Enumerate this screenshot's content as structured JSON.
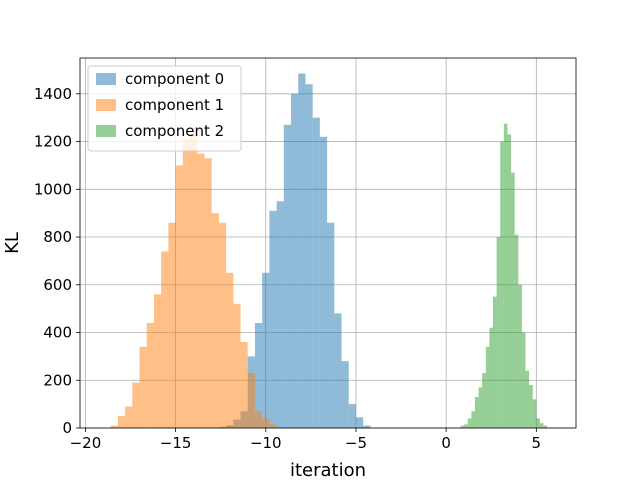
{
  "chart_data": {
    "type": "histogram",
    "title": "",
    "xlabel": "iteration",
    "ylabel": "KL",
    "xlim": [
      -20.3,
      7.2
    ],
    "ylim": [
      0,
      1550
    ],
    "xticks": [
      -20,
      -15,
      -10,
      -5,
      0,
      5
    ],
    "yticks": [
      0,
      200,
      400,
      600,
      800,
      1000,
      1200,
      1400
    ],
    "grid": true,
    "legend_position": "upper-left",
    "bar_alpha": 0.5,
    "series": [
      {
        "name": "component 0",
        "color": "#1f77b4",
        "bins": [
          {
            "x0": -12.6,
            "x1": -12.2,
            "y": 5
          },
          {
            "x0": -12.2,
            "x1": -11.8,
            "y": 12
          },
          {
            "x0": -11.8,
            "x1": -11.4,
            "y": 35
          },
          {
            "x0": -11.4,
            "x1": -11.0,
            "y": 70
          },
          {
            "x0": -11.0,
            "x1": -10.6,
            "y": 300
          },
          {
            "x0": -10.6,
            "x1": -10.2,
            "y": 440
          },
          {
            "x0": -10.2,
            "x1": -9.8,
            "y": 650
          },
          {
            "x0": -9.8,
            "x1": -9.4,
            "y": 910
          },
          {
            "x0": -9.4,
            "x1": -9.0,
            "y": 950
          },
          {
            "x0": -9.0,
            "x1": -8.6,
            "y": 1270
          },
          {
            "x0": -8.6,
            "x1": -8.2,
            "y": 1400
          },
          {
            "x0": -8.2,
            "x1": -7.8,
            "y": 1485
          },
          {
            "x0": -7.8,
            "x1": -7.4,
            "y": 1440
          },
          {
            "x0": -7.4,
            "x1": -7.0,
            "y": 1300
          },
          {
            "x0": -7.0,
            "x1": -6.6,
            "y": 1220
          },
          {
            "x0": -6.6,
            "x1": -6.2,
            "y": 860
          },
          {
            "x0": -6.2,
            "x1": -5.8,
            "y": 480
          },
          {
            "x0": -5.8,
            "x1": -5.4,
            "y": 280
          },
          {
            "x0": -5.4,
            "x1": -5.0,
            "y": 100
          },
          {
            "x0": -5.0,
            "x1": -4.6,
            "y": 45
          },
          {
            "x0": -4.6,
            "x1": -4.2,
            "y": 10
          }
        ]
      },
      {
        "name": "component 1",
        "color": "#ff7f0e",
        "bins": [
          {
            "x0": -18.6,
            "x1": -18.2,
            "y": 10
          },
          {
            "x0": -18.2,
            "x1": -17.8,
            "y": 50
          },
          {
            "x0": -17.8,
            "x1": -17.4,
            "y": 90
          },
          {
            "x0": -17.4,
            "x1": -17.0,
            "y": 190
          },
          {
            "x0": -17.0,
            "x1": -16.6,
            "y": 340
          },
          {
            "x0": -16.6,
            "x1": -16.2,
            "y": 440
          },
          {
            "x0": -16.2,
            "x1": -15.8,
            "y": 560
          },
          {
            "x0": -15.8,
            "x1": -15.4,
            "y": 740
          },
          {
            "x0": -15.4,
            "x1": -15.0,
            "y": 860
          },
          {
            "x0": -15.0,
            "x1": -14.6,
            "y": 1100
          },
          {
            "x0": -14.6,
            "x1": -14.2,
            "y": 1210
          },
          {
            "x0": -14.2,
            "x1": -13.8,
            "y": 1230
          },
          {
            "x0": -13.8,
            "x1": -13.4,
            "y": 1150
          },
          {
            "x0": -13.4,
            "x1": -13.0,
            "y": 1130
          },
          {
            "x0": -13.0,
            "x1": -12.6,
            "y": 900
          },
          {
            "x0": -12.6,
            "x1": -12.2,
            "y": 860
          },
          {
            "x0": -12.2,
            "x1": -11.8,
            "y": 650
          },
          {
            "x0": -11.8,
            "x1": -11.4,
            "y": 520
          },
          {
            "x0": -11.4,
            "x1": -11.0,
            "y": 360
          },
          {
            "x0": -11.0,
            "x1": -10.6,
            "y": 230
          },
          {
            "x0": -10.6,
            "x1": -10.2,
            "y": 70
          },
          {
            "x0": -10.2,
            "x1": -9.8,
            "y": 40
          },
          {
            "x0": -9.8,
            "x1": -9.4,
            "y": 15
          }
        ]
      },
      {
        "name": "component 2",
        "color": "#2ca02c",
        "bins": [
          {
            "x0": 0.8,
            "x1": 1.0,
            "y": 10
          },
          {
            "x0": 1.0,
            "x1": 1.2,
            "y": 15
          },
          {
            "x0": 1.2,
            "x1": 1.4,
            "y": 40
          },
          {
            "x0": 1.4,
            "x1": 1.6,
            "y": 70
          },
          {
            "x0": 1.6,
            "x1": 1.8,
            "y": 130
          },
          {
            "x0": 1.8,
            "x1": 2.0,
            "y": 170
          },
          {
            "x0": 2.0,
            "x1": 2.2,
            "y": 230
          },
          {
            "x0": 2.2,
            "x1": 2.4,
            "y": 340
          },
          {
            "x0": 2.4,
            "x1": 2.6,
            "y": 420
          },
          {
            "x0": 2.6,
            "x1": 2.8,
            "y": 550
          },
          {
            "x0": 2.8,
            "x1": 3.0,
            "y": 800
          },
          {
            "x0": 3.0,
            "x1": 3.2,
            "y": 1200
          },
          {
            "x0": 3.2,
            "x1": 3.4,
            "y": 1275
          },
          {
            "x0": 3.4,
            "x1": 3.6,
            "y": 1230
          },
          {
            "x0": 3.6,
            "x1": 3.8,
            "y": 1070
          },
          {
            "x0": 3.8,
            "x1": 4.0,
            "y": 810
          },
          {
            "x0": 4.0,
            "x1": 4.2,
            "y": 600
          },
          {
            "x0": 4.2,
            "x1": 4.4,
            "y": 400
          },
          {
            "x0": 4.4,
            "x1": 4.6,
            "y": 240
          },
          {
            "x0": 4.6,
            "x1": 4.8,
            "y": 180
          },
          {
            "x0": 4.8,
            "x1": 5.0,
            "y": 120
          },
          {
            "x0": 5.0,
            "x1": 5.2,
            "y": 40
          },
          {
            "x0": 5.2,
            "x1": 5.4,
            "y": 20
          },
          {
            "x0": 5.4,
            "x1": 5.6,
            "y": 10
          }
        ]
      }
    ]
  }
}
